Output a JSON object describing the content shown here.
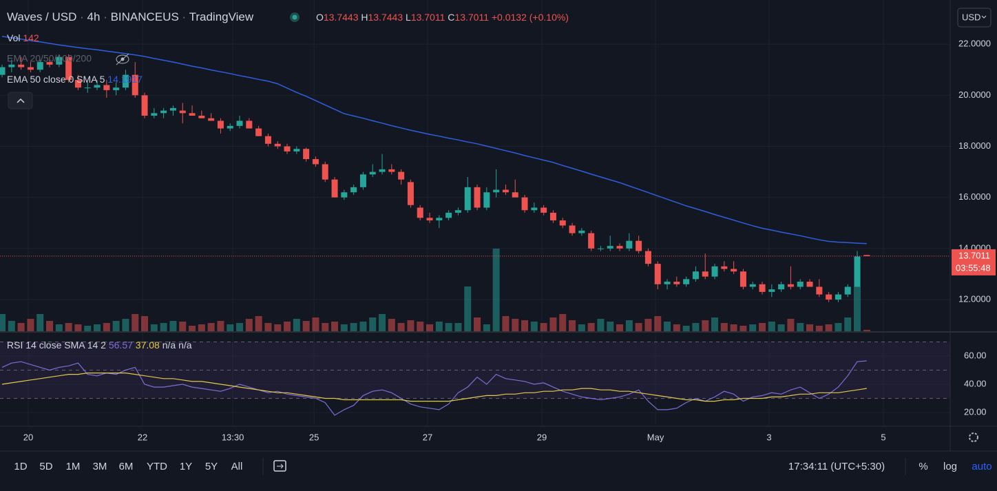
{
  "header": {
    "symbol": "Waves / USD",
    "separator": "·",
    "interval": "4h",
    "exchange": "BINANCEUS",
    "source": "TradingView",
    "ohlc_labels": [
      "O",
      "H",
      "L",
      "C"
    ],
    "change": "+0.0132",
    "change_pct": "(+0.10%)",
    "currency": "USD"
  },
  "legend": {
    "vol_label": "Vol",
    "ema_hidden_label": "EMA 20/50/100/200",
    "ema_label": "EMA 50 close 0 SMA 5"
  },
  "countdown": "03:55:48",
  "chart_data": [
    {
      "type": "candlestick",
      "up_color": "#26a69a",
      "down_color": "#ef5350",
      "open": [
        20.8,
        21.1,
        21.2,
        21.1,
        21.0,
        21.3,
        21.2,
        21.5,
        20.6,
        20.3,
        20.3,
        20.4,
        20.2,
        20.3,
        20.8,
        20.0,
        19.2,
        19.3,
        19.4,
        19.4,
        19.3,
        19.2,
        19.1,
        19.0,
        18.7,
        18.8,
        19.0,
        18.7,
        18.4,
        18.1,
        18.0,
        17.8,
        17.9,
        17.5,
        17.3,
        16.7,
        16.0,
        16.2,
        16.4,
        16.9,
        17.0,
        17.1,
        17.0,
        16.6,
        15.6,
        15.2,
        15.1,
        15.2,
        15.4,
        15.5,
        16.4,
        15.6,
        16.2,
        16.3,
        16.2,
        16.0,
        15.5,
        15.6,
        15.4,
        15.1,
        14.9,
        14.6,
        14.6,
        14.0,
        14.0,
        14.1,
        14.0,
        14.3,
        13.9,
        13.4,
        12.6,
        12.7,
        12.6,
        12.8,
        13.1,
        12.9,
        13.3,
        13.2,
        13.1,
        12.5,
        12.6,
        12.3,
        12.4,
        12.6,
        12.5,
        12.7,
        12.5,
        12.2,
        12.0,
        12.2,
        12.5,
        13.7443
      ],
      "high": [
        21.2,
        21.4,
        21.5,
        21.3,
        21.4,
        21.5,
        21.6,
        21.6,
        20.8,
        20.5,
        20.6,
        20.6,
        20.5,
        21.0,
        21.3,
        20.1,
        19.5,
        19.5,
        19.6,
        19.7,
        19.6,
        19.4,
        19.3,
        19.1,
        18.9,
        19.2,
        19.1,
        18.8,
        18.5,
        18.2,
        18.1,
        18.0,
        17.95,
        17.6,
        17.4,
        16.8,
        16.3,
        16.5,
        17.0,
        17.3,
        17.7,
        17.3,
        17.1,
        16.7,
        15.7,
        15.4,
        15.3,
        15.5,
        15.6,
        16.8,
        16.5,
        16.4,
        17.1,
        16.5,
        16.7,
        16.1,
        15.8,
        15.7,
        15.5,
        15.2,
        15.0,
        14.8,
        14.7,
        14.1,
        14.5,
        14.2,
        14.6,
        14.5,
        14.0,
        13.5,
        12.8,
        12.9,
        12.9,
        13.3,
        13.8,
        13.4,
        13.5,
        13.5,
        13.2,
        12.7,
        12.7,
        12.6,
        12.7,
        13.3,
        12.8,
        12.8,
        12.8,
        12.3,
        12.3,
        12.6,
        13.9,
        13.7443
      ],
      "low": [
        20.7,
        20.9,
        21.0,
        20.9,
        20.9,
        21.1,
        21.1,
        20.5,
        20.2,
        20.1,
        20.2,
        19.9,
        20.0,
        20.2,
        19.9,
        19.1,
        19.1,
        19.1,
        19.2,
        18.9,
        19.2,
        19.1,
        19.0,
        18.5,
        18.6,
        18.7,
        18.7,
        18.4,
        18.0,
        17.9,
        17.7,
        17.7,
        17.4,
        17.2,
        16.6,
        16.0,
        15.9,
        16.1,
        16.3,
        16.8,
        16.9,
        16.9,
        16.5,
        15.6,
        15.1,
        15.0,
        14.8,
        15.1,
        15.3,
        15.4,
        15.5,
        15.5,
        16.0,
        16.1,
        16.0,
        15.4,
        15.4,
        15.3,
        15.0,
        14.8,
        14.5,
        14.5,
        13.9,
        13.9,
        13.9,
        13.9,
        13.9,
        13.8,
        13.3,
        12.4,
        12.4,
        12.5,
        12.5,
        12.7,
        12.8,
        12.8,
        13.1,
        13.0,
        12.4,
        12.4,
        12.2,
        12.1,
        12.3,
        12.4,
        12.4,
        12.5,
        12.1,
        11.9,
        11.9,
        12.1,
        12.5,
        13.7011
      ],
      "close": [
        21.1,
        21.2,
        21.1,
        21.0,
        21.3,
        21.2,
        21.5,
        20.6,
        20.3,
        20.3,
        20.4,
        20.2,
        20.3,
        20.8,
        20.0,
        19.2,
        19.3,
        19.4,
        19.5,
        19.3,
        19.2,
        19.1,
        19.0,
        18.7,
        18.8,
        19.0,
        18.7,
        18.4,
        18.1,
        18.0,
        17.8,
        17.9,
        17.5,
        17.3,
        16.7,
        16.0,
        16.2,
        16.4,
        16.9,
        17.0,
        17.1,
        17.0,
        16.7,
        15.7,
        15.2,
        15.1,
        15.2,
        15.4,
        15.5,
        16.4,
        15.6,
        16.2,
        16.3,
        16.2,
        16.0,
        15.5,
        15.6,
        15.4,
        15.1,
        14.9,
        14.6,
        14.7,
        14.0,
        14.0,
        14.1,
        14.0,
        14.3,
        13.9,
        13.4,
        12.6,
        12.7,
        12.6,
        12.8,
        13.1,
        12.9,
        13.3,
        13.2,
        13.1,
        12.5,
        12.6,
        12.3,
        12.4,
        12.6,
        12.5,
        12.7,
        12.5,
        12.2,
        12.0,
        12.2,
        12.5,
        13.6879,
        13.7011
      ],
      "volume": [
        1750,
        1050,
        840,
        1260,
        1750,
        1050,
        700,
        840,
        700,
        560,
        700,
        840,
        1050,
        1260,
        1750,
        1540,
        700,
        840,
        1050,
        980,
        560,
        700,
        840,
        1050,
        700,
        840,
        1260,
        1540,
        840,
        700,
        980,
        1260,
        1050,
        1400,
        840,
        980,
        700,
        840,
        980,
        1400,
        1750,
        1260,
        840,
        1120,
        980,
        700,
        980,
        840,
        840,
        4550,
        1400,
        700,
        8400,
        1540,
        1260,
        1120,
        980,
        840,
        1400,
        1750,
        1120,
        700,
        840,
        1260,
        980,
        700,
        1120,
        840,
        1260,
        1540,
        980,
        700,
        560,
        840,
        1120,
        1400,
        840,
        700,
        560,
        700,
        840,
        980,
        700,
        1260,
        840,
        700,
        560,
        700,
        840,
        1400,
        4550,
        142
      ],
      "ema": {
        "color": "#2f5fe0",
        "values": [
          22.31,
          22.25,
          22.2,
          22.14,
          22.09,
          22.03,
          21.97,
          21.92,
          21.87,
          21.82,
          21.78,
          21.73,
          21.68,
          21.63,
          21.58,
          21.52,
          21.44,
          21.37,
          21.3,
          21.22,
          21.14,
          21.07,
          20.99,
          20.92,
          20.85,
          20.77,
          20.7,
          20.62,
          20.55,
          20.45,
          20.28,
          20.11,
          19.96,
          19.79,
          19.62,
          19.45,
          19.28,
          19.19,
          19.1,
          19.0,
          18.91,
          18.81,
          18.72,
          18.63,
          18.55,
          18.47,
          18.4,
          18.32,
          18.25,
          18.17,
          18.1,
          18.01,
          17.92,
          17.83,
          17.74,
          17.64,
          17.55,
          17.46,
          17.37,
          17.25,
          17.14,
          17.03,
          16.91,
          16.8,
          16.69,
          16.58,
          16.45,
          16.32,
          16.19,
          16.06,
          15.93,
          15.8,
          15.67,
          15.56,
          15.45,
          15.33,
          15.22,
          15.11,
          15.0,
          14.89,
          14.79,
          14.72,
          14.64,
          14.57,
          14.5,
          14.42,
          14.34,
          14.28,
          14.25,
          14.23,
          14.21,
          14.1917
        ]
      },
      "ylim": [
        10.76,
        23.73
      ],
      "yticks": [
        {
          "value": 22,
          "label": "22.0000"
        },
        {
          "value": 20,
          "label": "20.0000"
        },
        {
          "value": 18,
          "label": "18.0000"
        },
        {
          "value": 16,
          "label": "16.0000"
        },
        {
          "value": 14,
          "label": "14.0000"
        },
        {
          "value": 12,
          "label": "12.0000"
        }
      ],
      "xlim": [
        -0.22,
        99.78
      ],
      "xticks": [
        {
          "value": 2.75,
          "label": "20"
        },
        {
          "value": 14.78,
          "label": "22"
        },
        {
          "value": 24.28,
          "label": "13:30"
        },
        {
          "value": 32.83,
          "label": "25"
        },
        {
          "value": 44.78,
          "label": "27"
        },
        {
          "value": 56.81,
          "label": "29"
        },
        {
          "value": 68.77,
          "label": "May"
        },
        {
          "value": 80.72,
          "label": "3"
        },
        {
          "value": 92.75,
          "label": "5"
        }
      ],
      "grid": true
    },
    {
      "type": "line",
      "title": "RSI 14 close SMA 14 2",
      "na_label": "n/a n/a",
      "series": [
        {
          "name": "RSI",
          "color": "#7e6fd6",
          "values": [
            52,
            55,
            56,
            54,
            52,
            50,
            52,
            53,
            55,
            47,
            46,
            48,
            47,
            50,
            52,
            40,
            38,
            38,
            39,
            40,
            38,
            37,
            36,
            35,
            37,
            40,
            38,
            36,
            34,
            35,
            33,
            32,
            31,
            30,
            27,
            18,
            22,
            25,
            32,
            35,
            36,
            34,
            30,
            26,
            24,
            23,
            22,
            26,
            34,
            38,
            45,
            40,
            47,
            44,
            43,
            42,
            40,
            41,
            38,
            35,
            33,
            31,
            30,
            29,
            30,
            31,
            33,
            36,
            28,
            22,
            22,
            23,
            27,
            30,
            28,
            31,
            35,
            33,
            28,
            31,
            32,
            34,
            33,
            36,
            38,
            34,
            30,
            33,
            38,
            46,
            56,
            56.57
          ]
        },
        {
          "name": "SMA",
          "color": "#e5c94a",
          "values": [
            40,
            41,
            42,
            43,
            44,
            45,
            46,
            47,
            47,
            48,
            48,
            48,
            48,
            48,
            47,
            46,
            45,
            44,
            44,
            43,
            42,
            42,
            41,
            40,
            39,
            38,
            37,
            36,
            35,
            34,
            34,
            33,
            32,
            31,
            30,
            30,
            29,
            29,
            29,
            29,
            29,
            29,
            29,
            28,
            28,
            28,
            28,
            28,
            29,
            30,
            31,
            32,
            32,
            33,
            33,
            34,
            34,
            35,
            35,
            36,
            36,
            37,
            37,
            36,
            36,
            35,
            35,
            34,
            33,
            32,
            31,
            30,
            29,
            29,
            28,
            28,
            29,
            29,
            30,
            30,
            30,
            31,
            31,
            32,
            33,
            33,
            34,
            34,
            34,
            35,
            36,
            37.08
          ]
        }
      ],
      "levels": [
        70,
        50,
        30
      ],
      "ylim": [
        10.7,
        76.6
      ],
      "yticks": [
        {
          "value": 60,
          "label": "60.00"
        },
        {
          "value": 40,
          "label": "40.00"
        },
        {
          "value": 20,
          "label": "20.00"
        }
      ],
      "grid": true
    }
  ],
  "toolbar": {
    "ranges": [
      "1D",
      "5D",
      "1M",
      "3M",
      "6M",
      "YTD",
      "1Y",
      "5Y",
      "All"
    ],
    "clock": "17:34:11 (UTC+5:30)",
    "percent": "%",
    "log": "log",
    "auto": "auto"
  }
}
